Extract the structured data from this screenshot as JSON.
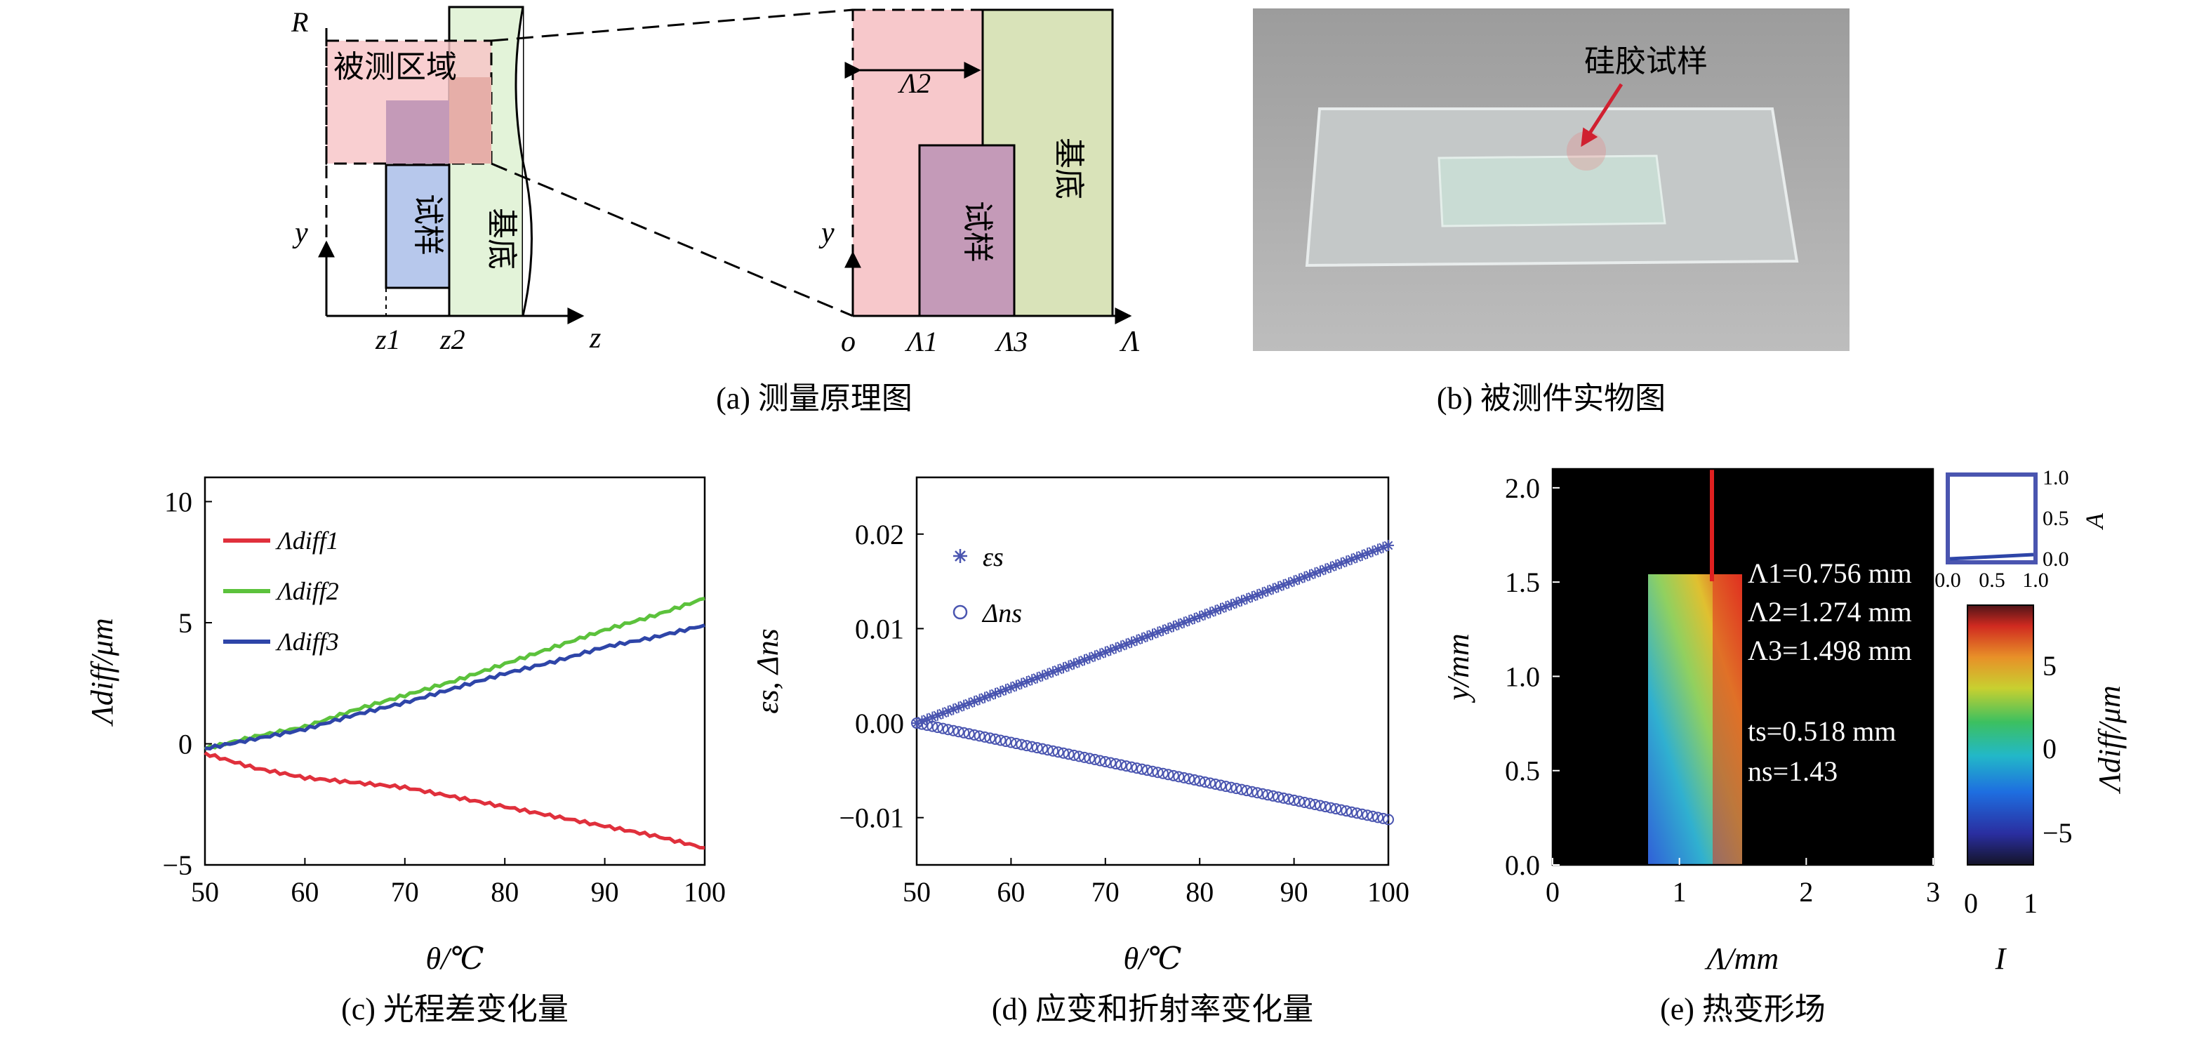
{
  "panels": {
    "a": {
      "caption": "(a) 测量原理图",
      "left": {
        "axis_R": "R",
        "axis_y": "y",
        "axis_z": "z",
        "tick_z1": "z1",
        "tick_z2": "z2",
        "region_label": "被测区域",
        "sample_label": "试样",
        "substrate_label": "基底"
      },
      "right": {
        "axis_y": "y",
        "origin": "o",
        "axis_lambda": "Λ",
        "dim_label": "Λ2",
        "tick_1": "Λ1",
        "tick_3": "Λ3",
        "sample_label": "试样",
        "substrate_label": "基底"
      }
    },
    "b": {
      "caption": "(b) 被测件实物图",
      "arrow_label": "硅胶试样"
    },
    "c": {
      "caption": "(c) 光程差变化量",
      "ylabel": "Λdiff/μm",
      "xlabel": "θ/℃",
      "colors": {
        "diff1": "#e0303c",
        "diff2": "#5cc23c",
        "diff3": "#2e45a8"
      }
    },
    "d": {
      "caption": "(d) 应变和折射率变化量",
      "ylabel": "εs, Δns",
      "xlabel": "θ/℃",
      "color": "#4a55b0"
    },
    "e": {
      "caption": "(e) 热变形场",
      "ylabel": "y/mm",
      "xlabel": "Λ/mm",
      "annotations": [
        "Λ1=0.756 mm",
        "Λ2=1.274 mm",
        "Λ3=1.498 mm",
        "ts=0.518 mm",
        "ns=1.43"
      ],
      "small_plot": {
        "ylabel": "A",
        "xticks": [
          "0.0",
          "0.5",
          "1.0"
        ],
        "yticks": [
          "1.0",
          "0.5",
          "0.0"
        ]
      },
      "colorbar": {
        "label": "Λdiff/μm",
        "ticks": [
          "5",
          "0",
          "−5"
        ],
        "xlabel": "I",
        "xticks": [
          "0",
          "1"
        ]
      }
    }
  },
  "chart_data": [
    {
      "id": "c",
      "type": "line",
      "xlabel": "θ/℃",
      "ylabel": "Λdiff/μm",
      "xlim": [
        50,
        100
      ],
      "ylim": [
        -5,
        11
      ],
      "xticks": [
        50,
        60,
        70,
        80,
        90,
        100
      ],
      "yticks": [
        -5,
        0,
        5,
        10
      ],
      "legend": "top-left",
      "series": [
        {
          "name": "Λdiff1",
          "x": [
            50,
            55,
            60,
            65,
            70,
            75,
            80,
            85,
            90,
            95,
            100
          ],
          "y": [
            -0.4,
            -1.0,
            -1.4,
            -1.6,
            -1.8,
            -2.2,
            -2.6,
            -3.0,
            -3.4,
            -3.8,
            -4.3
          ]
        },
        {
          "name": "Λdiff2",
          "x": [
            50,
            55,
            60,
            65,
            70,
            75,
            80,
            85,
            90,
            95,
            100
          ],
          "y": [
            -0.2,
            0.3,
            0.7,
            1.4,
            2.0,
            2.6,
            3.3,
            4.0,
            4.7,
            5.3,
            6.0
          ]
        },
        {
          "name": "Λdiff3",
          "x": [
            50,
            55,
            60,
            65,
            70,
            75,
            80,
            85,
            90,
            95,
            100
          ],
          "y": [
            -0.2,
            0.2,
            0.6,
            1.2,
            1.7,
            2.3,
            2.9,
            3.4,
            4.0,
            4.4,
            4.9
          ]
        }
      ]
    },
    {
      "id": "d",
      "type": "scatter",
      "xlabel": "θ/℃",
      "ylabel": "εs, Δns",
      "xlim": [
        50,
        100
      ],
      "ylim": [
        -0.015,
        0.026
      ],
      "xticks": [
        50,
        60,
        70,
        80,
        90,
        100
      ],
      "yticks": [
        -0.01,
        0.0,
        0.01,
        0.02
      ],
      "ytick_labels": [
        "−0.01",
        "0.00",
        "0.01",
        "0.02"
      ],
      "legend": "top-left",
      "series": [
        {
          "name": "εs",
          "marker": "star",
          "x_range": [
            50,
            100
          ],
          "y_range": [
            0.0,
            0.0188
          ]
        },
        {
          "name": "Δns",
          "marker": "circle",
          "x_range": [
            50,
            100
          ],
          "y_range": [
            0.0,
            -0.0102
          ]
        }
      ]
    },
    {
      "id": "e",
      "type": "heatmap",
      "xlabel": "Λ/mm",
      "ylabel": "y/mm",
      "xlim": [
        0,
        3
      ],
      "ylim": [
        0,
        2.1
      ],
      "xticks": [
        0,
        1,
        2,
        3
      ],
      "yticks": [
        0.0,
        0.5,
        1.0,
        1.5,
        2.0
      ],
      "ytick_labels": [
        "0.0",
        "0.5",
        "1.0",
        "1.5",
        "2.0"
      ],
      "colorbar_range": [
        -6.5,
        8
      ]
    }
  ]
}
